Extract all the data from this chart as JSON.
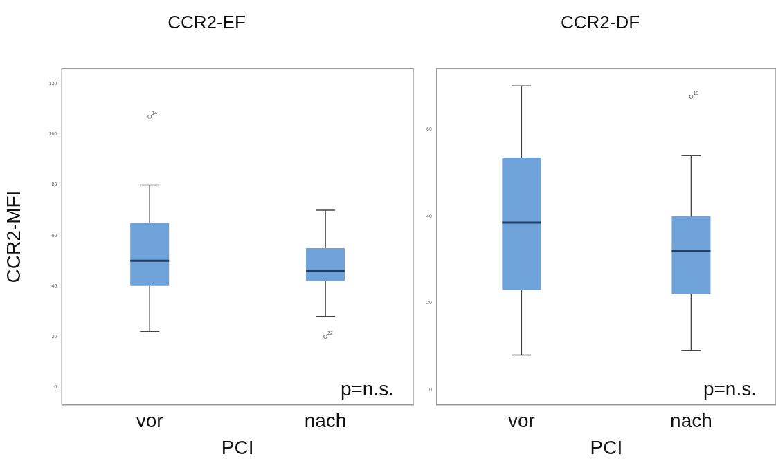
{
  "chart_data": [
    {
      "type": "box",
      "title": "CCR2-EF",
      "xlabel": "PCI",
      "ylabel": "CCR2-MFI",
      "categories": [
        "vor",
        "nach"
      ],
      "color": "#6fa2d8",
      "boxes": [
        {
          "low": 22,
          "q1": 40,
          "median": 50,
          "q3": 65,
          "high": 80,
          "outliers": [
            107
          ]
        },
        {
          "low": 28,
          "q1": 42,
          "median": 46,
          "q3": 55,
          "high": 70,
          "outliers": [
            20
          ]
        }
      ],
      "ylim": [
        -7,
        126
      ],
      "yticks": [
        0,
        20,
        40,
        60,
        80,
        100,
        120
      ],
      "annotations": [
        "14",
        "22",
        "p=n.s."
      ]
    },
    {
      "type": "box",
      "title": "CCR2-DF",
      "xlabel": "PCI",
      "categories": [
        "vor",
        "nach"
      ],
      "color": "#6fa2d8",
      "boxes": [
        {
          "low": 8,
          "q1": 23,
          "median": 38.5,
          "q3": 53.5,
          "high": 70
        },
        {
          "low": 9,
          "q1": 22,
          "median": 32,
          "q3": 40,
          "high": 54,
          "outliers": [
            67.5
          ]
        }
      ],
      "ylim": [
        -3.5,
        74
      ],
      "yticks": [
        0,
        20,
        40,
        60
      ],
      "annotations": [
        "19",
        "p=n.s."
      ]
    }
  ]
}
